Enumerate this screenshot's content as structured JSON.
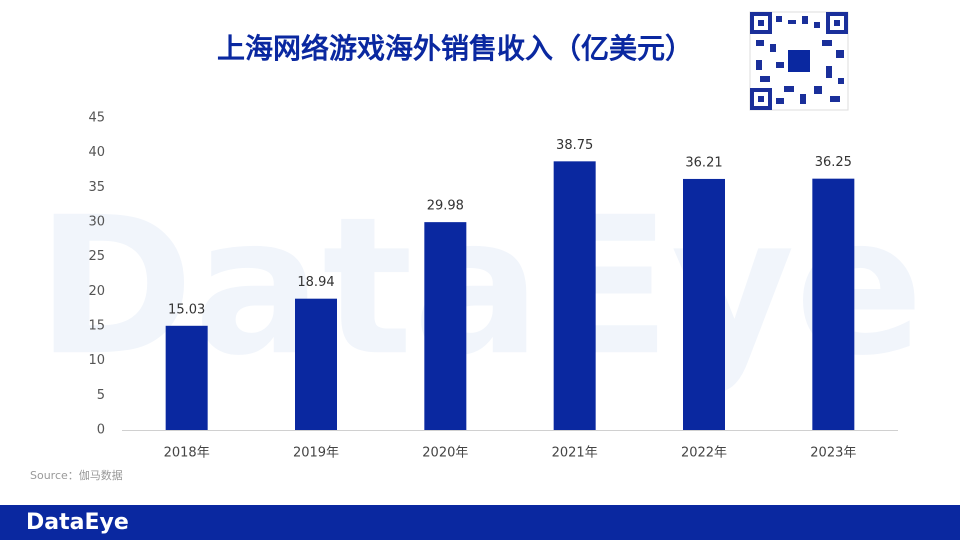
{
  "chart_data": {
    "type": "bar",
    "title": "上海网络游戏海外销售收入（亿美元）",
    "categories": [
      "2018年",
      "2019年",
      "2020年",
      "2021年",
      "2022年",
      "2023年"
    ],
    "values": [
      15.03,
      18.94,
      29.98,
      38.75,
      36.21,
      36.25
    ],
    "color": "#0a28a0",
    "ylim": [
      0,
      45
    ],
    "yticks": [
      0,
      5,
      10,
      15,
      20,
      25,
      30,
      35,
      40,
      45
    ],
    "grid": false,
    "source": "Source：伽马数据",
    "watermark": "DataEye",
    "footer_logo": "DataEye"
  }
}
